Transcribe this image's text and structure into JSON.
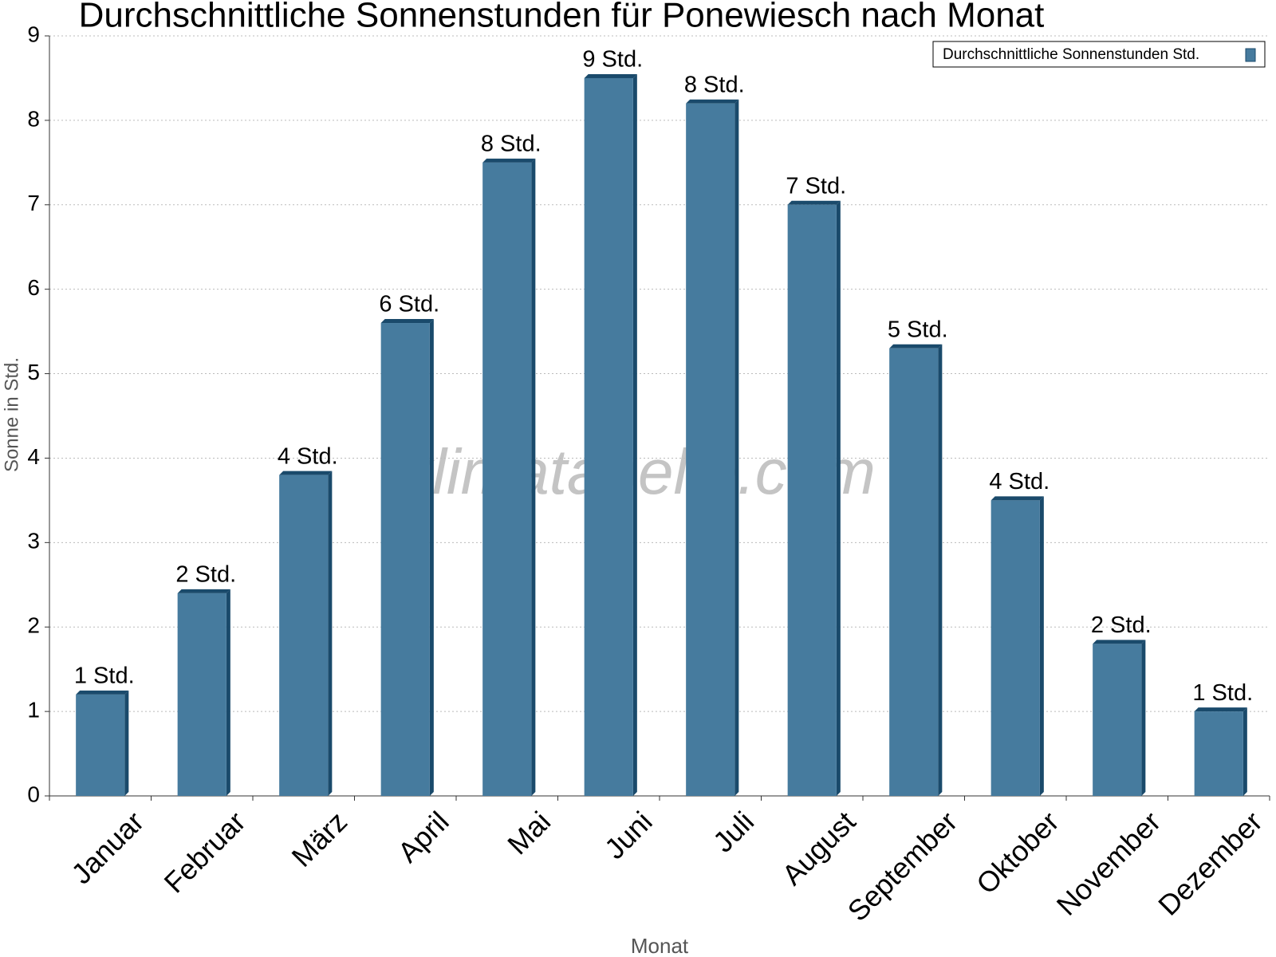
{
  "chart_data": {
    "type": "bar",
    "title": "Durchschnittliche Sonnenstunden für Ponewiesch nach Monat",
    "x_label": "Monat",
    "y_label": "Sonne in Std.",
    "watermark": "klimatabelle.com",
    "categories": [
      "Januar",
      "Februar",
      "März",
      "April",
      "Mai",
      "Juni",
      "Juli",
      "August",
      "September",
      "Oktober",
      "November",
      "Dezember"
    ],
    "series": [
      {
        "name": "Durchschnittliche Sonnenstunden Std.",
        "color": "#467b9e",
        "values": [
          1.2,
          2.4,
          3.8,
          5.6,
          7.5,
          8.5,
          8.2,
          7.0,
          5.3,
          3.5,
          1.8,
          1.0
        ],
        "value_labels": [
          "1 Std.",
          "2 Std.",
          "4 Std.",
          "6 Std.",
          "8 Std.",
          "9 Std.",
          "8 Std.",
          "7 Std.",
          "5 Std.",
          "4 Std.",
          "2 Std.",
          "1 Std."
        ]
      }
    ],
    "ylim": [
      0,
      9
    ],
    "yticks": [
      0,
      1,
      2,
      3,
      4,
      5,
      6,
      7,
      8,
      9
    ],
    "grid": true,
    "legend": "top-right"
  }
}
